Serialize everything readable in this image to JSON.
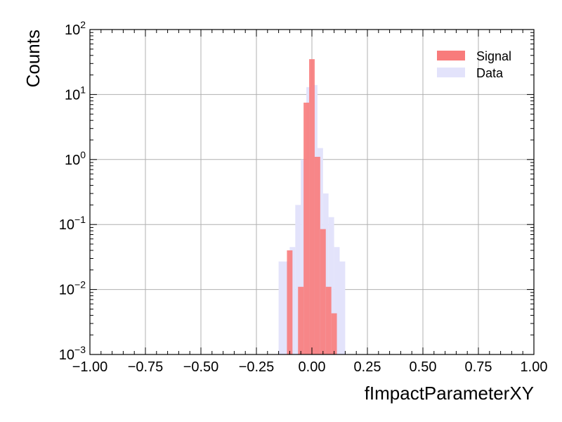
{
  "chart_data": {
    "type": "bar",
    "xlabel": "fImpactParameterXY",
    "ylabel": "Counts",
    "xlim": [
      -1.0,
      1.0
    ],
    "ylim": [
      0.001,
      100
    ],
    "yscale": "log",
    "grid": true,
    "legend_position": "top-right",
    "x_ticks": [
      "−1.00",
      "−0.75",
      "−0.50",
      "−0.25",
      "0.00",
      "0.25",
      "0.50",
      "0.75",
      "1.00"
    ],
    "y_ticks": [
      {
        "base": "10",
        "exp": "−3"
      },
      {
        "base": "10",
        "exp": "−2"
      },
      {
        "base": "10",
        "exp": "−1"
      },
      {
        "base": "10",
        "exp": "0"
      },
      {
        "base": "10",
        "exp": "1"
      },
      {
        "base": "10",
        "exp": "2"
      }
    ],
    "bin_width": 0.025,
    "series": [
      {
        "name": "Data",
        "color": "#e3e3fb",
        "bins": [
          {
            "x": -0.15,
            "y": 0.027
          },
          {
            "x": -0.125,
            "y": 0.027
          },
          {
            "x": -0.1,
            "y": 0.045
          },
          {
            "x": -0.075,
            "y": 0.2
          },
          {
            "x": -0.05,
            "y": 1.0
          },
          {
            "x": -0.025,
            "y": 13
          },
          {
            "x": 0.0,
            "y": 14
          },
          {
            "x": 0.025,
            "y": 1.5
          },
          {
            "x": 0.05,
            "y": 0.3
          },
          {
            "x": 0.075,
            "y": 0.13
          },
          {
            "x": 0.1,
            "y": 0.045
          },
          {
            "x": 0.125,
            "y": 0.027
          }
        ]
      },
      {
        "name": "Signal",
        "color": "#f87b7b",
        "bins": [
          {
            "x": -0.1125,
            "y": 0.04
          },
          {
            "x": -0.0625,
            "y": 0.011
          },
          {
            "x": -0.0375,
            "y": 7.5
          },
          {
            "x": -0.0125,
            "y": 35
          },
          {
            "x": 0.0125,
            "y": 1.1
          },
          {
            "x": 0.0375,
            "y": 0.085
          },
          {
            "x": 0.0625,
            "y": 0.011
          },
          {
            "x": 0.0875,
            "y": 0.0043
          }
        ]
      }
    ],
    "legend": [
      {
        "label": "Signal",
        "color": "#f87b7b"
      },
      {
        "label": "Data",
        "color": "#e3e3fb"
      }
    ]
  }
}
